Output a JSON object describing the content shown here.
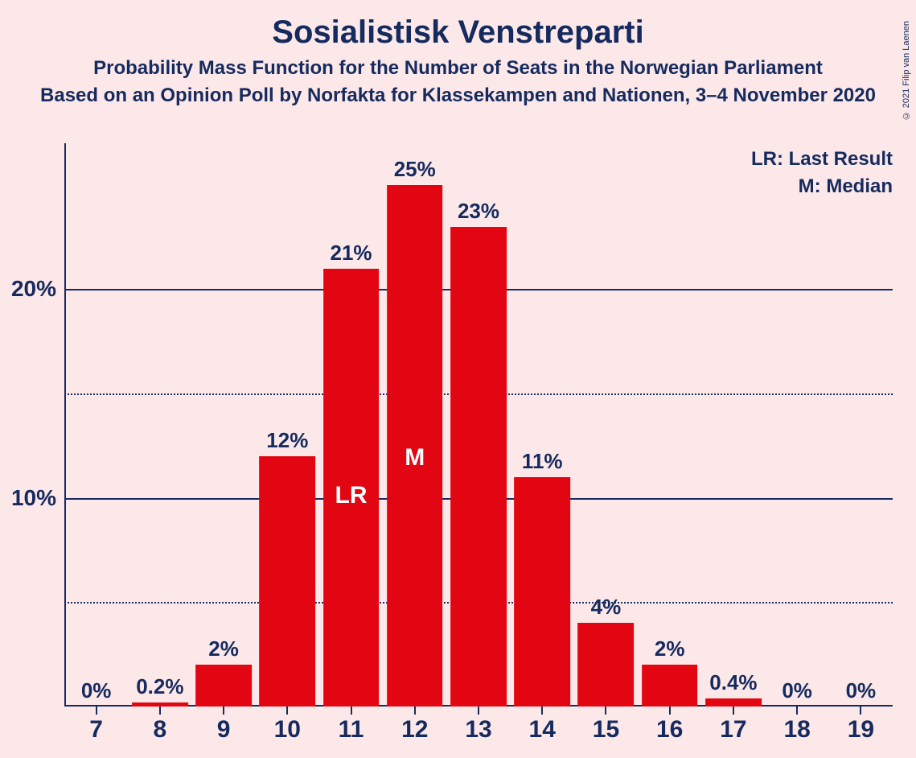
{
  "title": "Sosialistisk Venstreparti",
  "subtitle1": "Probability Mass Function for the Number of Seats in the Norwegian Parliament",
  "subtitle2": "Based on an Opinion Poll by Norfakta for Klassekampen and Nationen, 3–4 November 2020",
  "copyright": "© 2021 Filip van Laenen",
  "legend": {
    "lr": "LR: Last Result",
    "m": "M: Median"
  },
  "chart": {
    "type": "bar",
    "background_color": "#fce8e8",
    "bar_color": "#e20612",
    "text_color": "#152a5e",
    "inner_label_color": "#ffffff",
    "ylim": [
      0,
      27
    ],
    "y_major_ticks": [
      10,
      20
    ],
    "y_minor_ticks": [
      5,
      15
    ],
    "y_tick_labels": {
      "10": "10%",
      "20": "20%"
    },
    "bar_width_ratio": 0.88,
    "categories": [
      "7",
      "8",
      "9",
      "10",
      "11",
      "12",
      "13",
      "14",
      "15",
      "16",
      "17",
      "18",
      "19"
    ],
    "values": [
      0,
      0.2,
      2,
      12,
      21,
      25,
      23,
      11,
      4,
      2,
      0.4,
      0,
      0
    ],
    "value_labels": [
      "0%",
      "0.2%",
      "2%",
      "12%",
      "21%",
      "25%",
      "23%",
      "11%",
      "4%",
      "2%",
      "0.4%",
      "0%",
      "0%"
    ],
    "inner_labels": {
      "11": "LR",
      "12": "M"
    },
    "title_fontsize": 40,
    "subtitle_fontsize": 24,
    "axis_label_fontsize": 28,
    "value_label_fontsize": 26,
    "x_label_fontsize": 30,
    "inner_label_fontsize": 30
  }
}
